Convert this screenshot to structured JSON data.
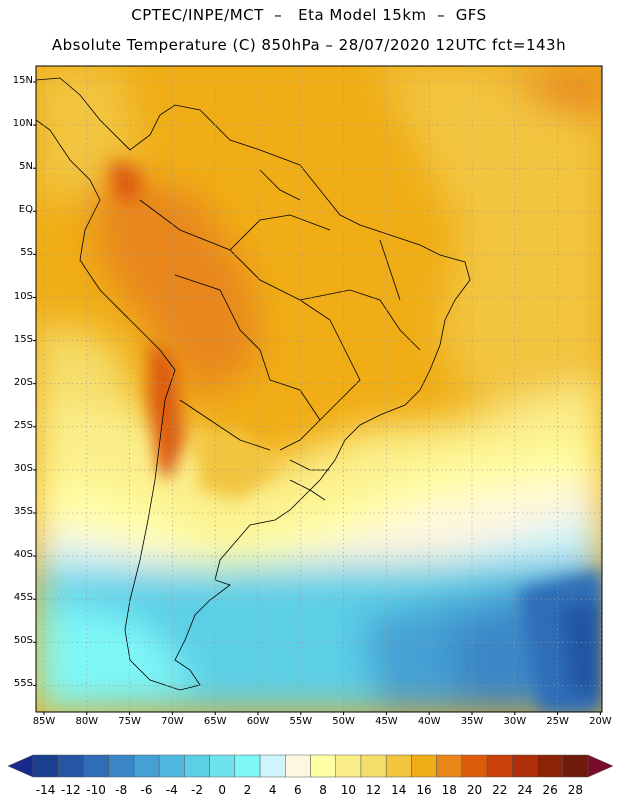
{
  "header": {
    "line1": "CPTEC/INPE/MCT  –   Eta Model 15km  –  GFS",
    "line2": "Absolute Temperature (C) 850hPa – 28/07/2020 12UTC fct=143h"
  },
  "map": {
    "lat_labels": [
      "15N",
      "10N",
      "5N",
      "EQ",
      "5S",
      "10S",
      "15S",
      "20S",
      "25S",
      "30S",
      "35S",
      "40S",
      "45S",
      "50S",
      "55S"
    ],
    "lon_labels": [
      "85W",
      "80W",
      "75W",
      "70W",
      "65W",
      "60W",
      "55W",
      "50W",
      "45W",
      "40W",
      "35W",
      "30W",
      "25W",
      "20W"
    ],
    "gridlines": true
  },
  "colorbar": {
    "labels": [
      "-14",
      "-12",
      "-10",
      "-8",
      "-6",
      "-4",
      "-2",
      "0",
      "2",
      "4",
      "6",
      "8",
      "10",
      "12",
      "14",
      "16",
      "18",
      "20",
      "22",
      "24",
      "26",
      "28"
    ],
    "colors": [
      "#1a3f8f",
      "#2456a3",
      "#2f6db7",
      "#3a86c6",
      "#45a0d4",
      "#4fb8de",
      "#5ccfe6",
      "#6ee3ee",
      "#7ff8f8",
      "#d0f4fb",
      "#fff6e0",
      "#ffffa6",
      "#fbef8a",
      "#f5de6a",
      "#f2c53f",
      "#f0ad16",
      "#e8861a",
      "#dd5c0c",
      "#c9400a",
      "#b02f08",
      "#8e2206",
      "#6e1a0c"
    ],
    "low_arrow_color": "#1a2a8a",
    "high_arrow_color": "#7a0b2a"
  }
}
